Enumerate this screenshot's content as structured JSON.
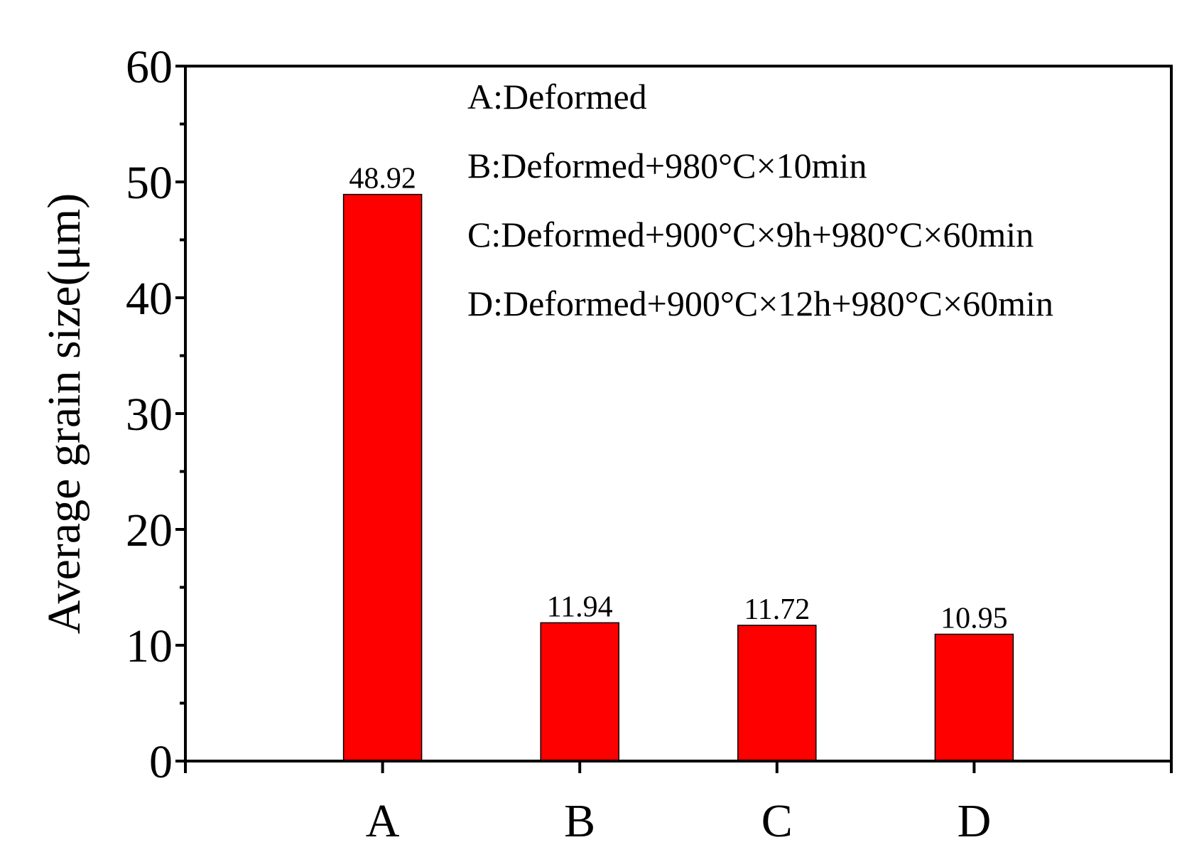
{
  "chart_data": {
    "type": "bar",
    "categories": [
      "A",
      "B",
      "C",
      "D"
    ],
    "values": [
      48.92,
      11.94,
      11.72,
      10.95
    ],
    "data_labels": [
      "48.92",
      "11.94",
      "11.72",
      "10.95"
    ],
    "title": "",
    "xlabel": "",
    "ylabel": "Average grain size(μm)",
    "ylim": [
      0,
      60
    ],
    "xlim": [
      -1,
      4
    ],
    "yticks": [
      0,
      10,
      20,
      30,
      40,
      50,
      60
    ],
    "ytick_labels": [
      "0",
      "10",
      "20",
      "30",
      "40",
      "50",
      "60"
    ],
    "bar_color": "#ff0000",
    "grid": false,
    "legend_position": "top-right",
    "annotations": [
      "A:Deformed",
      "B:Deformed+980°C×10min",
      "C:Deformed+900°C×9h+980°C×60min",
      "D:Deformed+900°C×12h+980°C×60min"
    ]
  }
}
